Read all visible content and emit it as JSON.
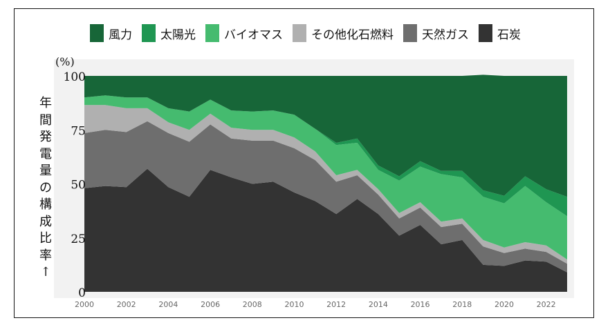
{
  "chart_data": {
    "type": "area",
    "stacked": true,
    "unit_label": "(%)",
    "ylabel": "年間発電量の構成比率",
    "ylabel_suffix": "↑",
    "ylim": [
      0,
      100
    ],
    "yticks": [
      0,
      25,
      50,
      75,
      100
    ],
    "xlim": [
      2000,
      2023
    ],
    "xticks": [
      2000,
      2002,
      2004,
      2006,
      2008,
      2010,
      2012,
      2014,
      2016,
      2018,
      2020,
      2022
    ],
    "grid": false,
    "legend_position": "top",
    "x": [
      2000,
      2001,
      2002,
      2003,
      2004,
      2005,
      2006,
      2007,
      2008,
      2009,
      2010,
      2011,
      2012,
      2013,
      2014,
      2015,
      2016,
      2017,
      2018,
      2019,
      2020,
      2021,
      2022,
      2023
    ],
    "series": [
      {
        "name": "石炭",
        "color": "#333333",
        "values": [
          48,
          49,
          48.5,
          57,
          48.5,
          44,
          56.5,
          53,
          50,
          51,
          46,
          42,
          36,
          43,
          36,
          26,
          31,
          22,
          24,
          12.5,
          12,
          14.5,
          14,
          9
        ]
      },
      {
        "name": "天然ガス",
        "color": "#6e6e6e",
        "values": [
          25.5,
          26,
          25.5,
          22,
          25,
          25.5,
          21,
          18,
          20,
          19,
          20.5,
          19,
          15,
          11,
          9,
          8,
          8,
          8,
          7.5,
          8.5,
          6,
          5.5,
          4.5,
          4
        ]
      },
      {
        "name": "その他化石燃料",
        "color": "#b0b0b0",
        "values": [
          13,
          11.5,
          11,
          6,
          5,
          5.5,
          5,
          5,
          5,
          5,
          5,
          4,
          3,
          2.5,
          2.5,
          2.5,
          2.5,
          2.5,
          2.5,
          3,
          2.5,
          3,
          3,
          2
        ]
      },
      {
        "name": "バイオマス",
        "color": "#45bb6f",
        "values": [
          3.5,
          4.5,
          5,
          5,
          6.5,
          8.5,
          6.5,
          8,
          8.5,
          9,
          10.5,
          10.5,
          14,
          12.5,
          9,
          15,
          16.5,
          22,
          19,
          20,
          20.5,
          26,
          20,
          20
        ]
      },
      {
        "name": "太陽光",
        "color": "#1f9652",
        "values": [
          0,
          0,
          0,
          0,
          0,
          0,
          0,
          0,
          0,
          0,
          0,
          0,
          1,
          2,
          2,
          2,
          2.5,
          1.5,
          3,
          3,
          3.5,
          4.5,
          6,
          9
        ]
      },
      {
        "name": "風力",
        "color": "#176638",
        "values": [
          10,
          9,
          10,
          10,
          15,
          16.5,
          11,
          16,
          16.5,
          16,
          18,
          24.5,
          31,
          29,
          41.5,
          46.5,
          39.5,
          44,
          44,
          53.5,
          55.5,
          46.5,
          52.5,
          56
        ]
      }
    ]
  }
}
